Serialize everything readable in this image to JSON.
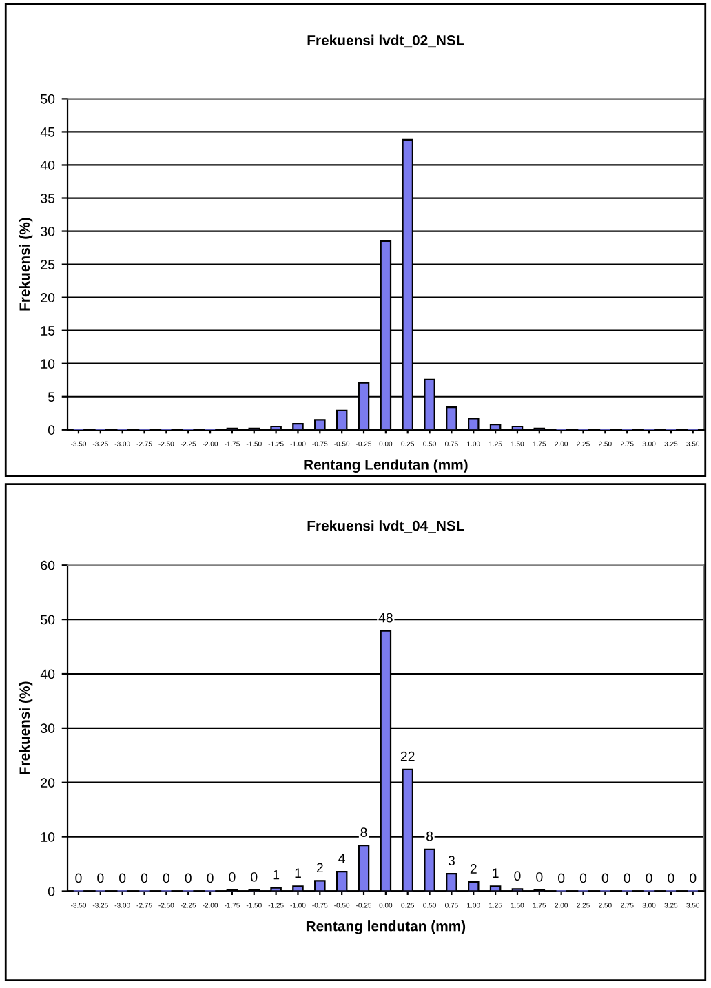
{
  "chart_data": [
    {
      "type": "bar",
      "title": "Frekuensi lvdt_02_NSL",
      "xlabel": "Rentang Lendutan (mm)",
      "ylabel": "Frekuensi (%)",
      "categories": [
        "-3.50",
        "-3.25",
        "-3.00",
        "-2.75",
        "-2.50",
        "-2.25",
        "-2.00",
        "-1.75",
        "-1.50",
        "-1.25",
        "-1.00",
        "-0.75",
        "-0.50",
        "-0.25",
        "0.00",
        "0.25",
        "0.50",
        "0.75",
        "1.00",
        "1.25",
        "1.50",
        "1.75",
        "2.00",
        "2.25",
        "2.50",
        "2.75",
        "3.00",
        "3.25",
        "3.50"
      ],
      "values": [
        0,
        0,
        0,
        0,
        0,
        0,
        0,
        0.2,
        0.2,
        0.5,
        0.9,
        1.5,
        2.9,
        7.1,
        28.5,
        43.8,
        7.6,
        3.4,
        1.7,
        0.8,
        0.5,
        0.2,
        0,
        0,
        0,
        0,
        0,
        0,
        0
      ],
      "color": "#7b7bef",
      "ylim": [
        0,
        50
      ],
      "yticks": [
        0,
        5,
        10,
        15,
        20,
        25,
        30,
        35,
        40,
        45,
        50
      ],
      "grid": "y",
      "legend": false
    },
    {
      "type": "bar",
      "title": "Frekuensi lvdt_04_NSL",
      "xlabel": "Rentang lendutan (mm)",
      "ylabel": "Frekuensi (%)",
      "categories": [
        "-3.50",
        "-3.25",
        "-3.00",
        "-2.75",
        "-2.50",
        "-2.25",
        "-2.00",
        "-1.75",
        "-1.50",
        "-1.25",
        "-1.00",
        "-0.75",
        "-0.50",
        "-0.25",
        "0.00",
        "0.25",
        "0.50",
        "0.75",
        "1.00",
        "1.25",
        "1.50",
        "1.75",
        "2.00",
        "2.25",
        "2.50",
        "2.75",
        "3.00",
        "3.25",
        "3.50"
      ],
      "values": [
        0,
        0,
        0,
        0,
        0,
        0,
        0,
        0.2,
        0.2,
        0.6,
        0.9,
        1.9,
        3.6,
        8.4,
        47.9,
        22.4,
        7.7,
        3.2,
        1.7,
        0.9,
        0.4,
        0.2,
        0,
        0,
        0,
        0,
        0,
        0,
        0
      ],
      "value_labels": [
        "0",
        "0",
        "0",
        "0",
        "0",
        "0",
        "0",
        "0",
        "0",
        "1",
        "1",
        "2",
        "4",
        "8",
        "48",
        "22",
        "8",
        "3",
        "2",
        "1",
        "0",
        "0",
        "0",
        "0",
        "0",
        "0",
        "0",
        "0",
        "0"
      ],
      "color": "#7b7bef",
      "ylim": [
        0,
        60
      ],
      "yticks": [
        0,
        10,
        20,
        30,
        40,
        50,
        60
      ],
      "grid": "y",
      "legend": false
    }
  ]
}
